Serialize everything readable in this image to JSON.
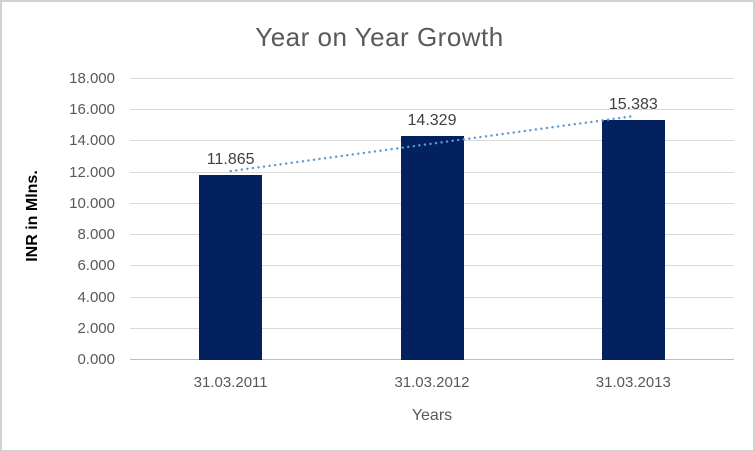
{
  "chart": {
    "background": "#FFFFFF",
    "border_color": "#D2D2D2"
  },
  "chart_data": {
    "type": "bar",
    "title": "Year on Year Growth",
    "xlabel": "Years",
    "ylabel": "INR in Mlns.",
    "categories": [
      "31.03.2011",
      "31.03.2012",
      "31.03.2013"
    ],
    "values": [
      11.865,
      14.329,
      15.383
    ],
    "data_labels": [
      "11.865",
      "14.329",
      "15.383"
    ],
    "ylim": [
      0,
      18
    ],
    "ytick_step": 2,
    "ytick_labels": [
      "0.000",
      "2.000",
      "4.000",
      "6.000",
      "8.000",
      "10.000",
      "12.000",
      "14.000",
      "16.000",
      "18.000"
    ],
    "grid": true,
    "legend": false,
    "bar_color": "#03215E",
    "trendline": {
      "type": "linear",
      "style": "dotted",
      "color": "#5B9BD5"
    },
    "colors": {
      "title": "#595959",
      "axis_labels": "#595959",
      "data_labels": "#404040",
      "gridline": "#D9D9D9",
      "axis_line": "#BDBDBD"
    }
  }
}
